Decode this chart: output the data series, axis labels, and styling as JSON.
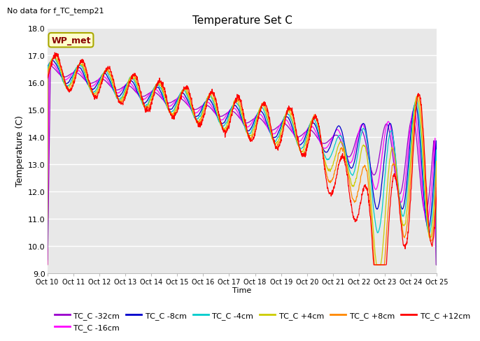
{
  "title": "Temperature Set C",
  "xlabel": "Time",
  "ylabel": "Temperature (C)",
  "no_data_text": "No data for f_TC_temp21",
  "wp_met_label": "WP_met",
  "ylim": [
    9.0,
    18.0
  ],
  "yticks": [
    9.0,
    10.0,
    11.0,
    12.0,
    13.0,
    14.0,
    15.0,
    16.0,
    17.0,
    18.0
  ],
  "xtick_labels": [
    "Oct 10",
    "Oct 11",
    "Oct 12",
    "Oct 13",
    "Oct 14",
    "Oct 15",
    "Oct 16",
    "Oct 17",
    "Oct 18",
    "Oct 19",
    "Oct 20",
    "Oct 21",
    "Oct 22",
    "Oct 23",
    "Oct 24",
    "Oct 25"
  ],
  "series_colors": {
    "TC_C -32cm": "#9900cc",
    "TC_C -16cm": "#ff00ff",
    "TC_C -8cm": "#0000cc",
    "TC_C -4cm": "#00cccc",
    "TC_C +4cm": "#cccc00",
    "TC_C +8cm": "#ff8800",
    "TC_C +12cm": "#ff0000"
  },
  "legend_order": [
    "TC_C -32cm",
    "TC_C -16cm",
    "TC_C -8cm",
    "TC_C -4cm",
    "TC_C +4cm",
    "TC_C +8cm",
    "TC_C +12cm"
  ],
  "bg_color": "#e8e8e8",
  "grid_color": "#ffffff",
  "n_points": 1500
}
